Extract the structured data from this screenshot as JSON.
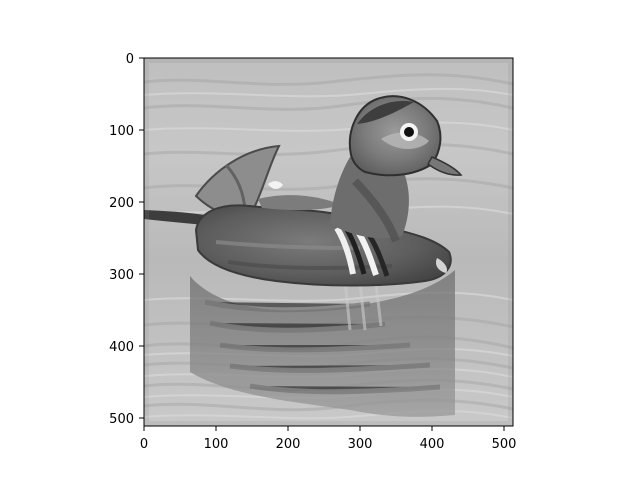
{
  "figure": {
    "image_description_kind": "grayscale",
    "colors": {
      "background": "#ffffff",
      "axes_frame": "#000000",
      "ticks": "#000000"
    }
  },
  "axes": {
    "x_ticks": [
      "0",
      "100",
      "200",
      "300",
      "400",
      "500"
    ],
    "y_ticks": [
      "0",
      "100",
      "200",
      "300",
      "400",
      "500"
    ],
    "xlim": [
      0,
      512
    ],
    "ylim": [
      512,
      0
    ]
  }
}
